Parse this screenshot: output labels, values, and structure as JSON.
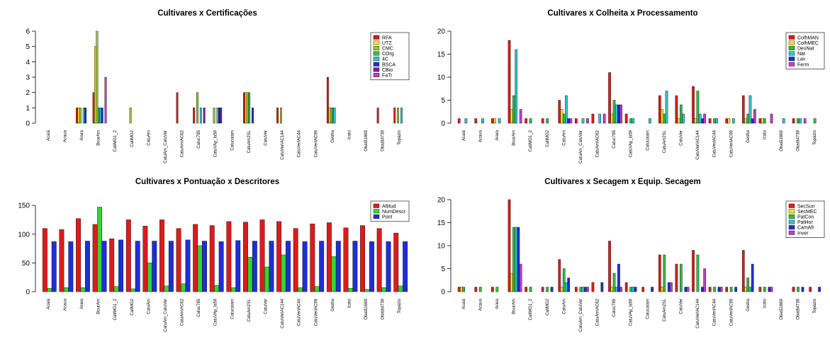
{
  "chart_data": [
    {
      "type": "bar",
      "title": "Cultivares x Certificações",
      "ylim": [
        0,
        6
      ],
      "yticks": [
        0,
        1,
        2,
        3,
        4,
        5,
        6
      ],
      "legend": "top-right",
      "categories": [
        "Acaiá",
        "Acaua",
        "Arara",
        "BourAm",
        "CatiMG1_2",
        "CatiMG2",
        "CatuAm",
        "CatuAm_CatuVer",
        "CatuAmIAC62",
        "Catuc785",
        "CatuVAp_la59",
        "Catucaiam",
        "CatuAm2SL",
        "CatuVer",
        "CatuVerIAC144",
        "CatuVerIAC44",
        "CatuVerIAC99",
        "Gesha",
        "Icatú",
        "Obatã1669",
        "Obatã4739",
        "Topázio"
      ],
      "series": [
        {
          "name": "RFA",
          "color": "#DF1A1A",
          "values": [
            0,
            0,
            1,
            2,
            0,
            0,
            0,
            0,
            2,
            1,
            0,
            0,
            2,
            0,
            1,
            0,
            0,
            3,
            0,
            0,
            1,
            1
          ]
        },
        {
          "name": "UTZ",
          "color": "#F2E21C",
          "values": [
            0,
            0,
            1,
            5,
            0,
            0,
            0,
            0,
            0,
            0,
            0,
            0,
            2,
            0,
            0,
            0,
            0,
            1,
            0,
            0,
            0,
            0
          ]
        },
        {
          "name": "CMC",
          "color": "#9BC43B",
          "values": [
            0,
            0,
            1,
            6,
            0,
            1,
            0,
            0,
            0,
            2,
            1,
            0,
            2,
            0,
            1,
            0,
            0,
            1,
            0,
            0,
            0,
            1
          ]
        },
        {
          "name": "COrg",
          "color": "#2FBF44",
          "values": [
            0,
            0,
            0,
            1,
            0,
            0,
            0,
            0,
            0,
            0,
            0,
            0,
            2,
            0,
            0,
            0,
            0,
            1,
            0,
            0,
            0,
            0
          ]
        },
        {
          "name": "4C",
          "color": "#33C3D1",
          "values": [
            0,
            0,
            1,
            1,
            0,
            0,
            0,
            0,
            0,
            1,
            1,
            0,
            0,
            0,
            0,
            0,
            0,
            1,
            0,
            0,
            0,
            1
          ]
        },
        {
          "name": "BSCA",
          "color": "#1F2ED6",
          "values": [
            0,
            0,
            1,
            1,
            0,
            0,
            0,
            0,
            0,
            0,
            1,
            0,
            1,
            0,
            0,
            0,
            0,
            0,
            0,
            0,
            0,
            0
          ]
        },
        {
          "name": "CBio",
          "color": "#7B1FA2",
          "values": [
            0,
            0,
            0,
            0,
            0,
            0,
            0,
            0,
            0,
            1,
            1,
            0,
            0,
            0,
            0,
            0,
            0,
            0,
            0,
            0,
            0,
            0
          ]
        },
        {
          "name": "FaTr",
          "color": "#C03FBF",
          "values": [
            0,
            0,
            0,
            3,
            0,
            0,
            0,
            0,
            0,
            0,
            0,
            0,
            0,
            0,
            0,
            0,
            0,
            0,
            0,
            0,
            0,
            0
          ]
        }
      ]
    },
    {
      "type": "bar",
      "title": "Cultivares x Colheita x Processamento",
      "ylim": [
        0,
        20
      ],
      "yticks": [
        0,
        5,
        10,
        15,
        20
      ],
      "legend": "top-right",
      "categories": [
        "Acaiá",
        "Acaua",
        "Arara",
        "BourAm",
        "CatiMG1_2",
        "CatiMG2",
        "CatuAm",
        "CatuAm_CatuVer",
        "CatuAmIAC62",
        "Catuc785",
        "CatuVAp_la59",
        "Catucaiam",
        "CatuAm2SL",
        "CatuVer",
        "CatuVerIAC144",
        "CatuVerIAC44",
        "CatuVerIAC99",
        "Gesha",
        "Icatú",
        "Obatã1669",
        "Obatã4739",
        "Topázio"
      ],
      "series": [
        {
          "name": "ColhMAN",
          "color": "#DF1A1A",
          "values": [
            1,
            1,
            1,
            18,
            1,
            1,
            5,
            1,
            2,
            11,
            2,
            0,
            6,
            6,
            8,
            1,
            1,
            6,
            1,
            0,
            1,
            0
          ]
        },
        {
          "name": "ColhMEC",
          "color": "#F2E21C",
          "values": [
            0,
            0,
            1,
            3,
            0,
            0,
            3,
            0,
            0,
            2,
            0,
            0,
            3,
            1,
            1,
            0,
            1,
            1,
            1,
            0,
            0,
            0
          ]
        },
        {
          "name": "DesNat",
          "color": "#2FBF44",
          "values": [
            0,
            0,
            0,
            6,
            1,
            1,
            2,
            0,
            0,
            5,
            1,
            0,
            2,
            4,
            7,
            1,
            0,
            2,
            1,
            0,
            1,
            1
          ]
        },
        {
          "name": "Nat",
          "color": "#33C3D1",
          "values": [
            1,
            1,
            1,
            16,
            0,
            0,
            6,
            1,
            2,
            4,
            1,
            1,
            7,
            2,
            2,
            1,
            1,
            6,
            0,
            1,
            1,
            0
          ]
        },
        {
          "name": "Lav",
          "color": "#1F2ED6",
          "values": [
            0,
            0,
            0,
            0,
            0,
            0,
            1,
            0,
            0,
            4,
            0,
            0,
            0,
            0,
            1,
            0,
            0,
            1,
            0,
            0,
            0,
            0
          ]
        },
        {
          "name": "Ferm",
          "color": "#C03FBF",
          "values": [
            0,
            0,
            0,
            3,
            0,
            0,
            1,
            1,
            2,
            4,
            0,
            0,
            0,
            0,
            2,
            0,
            0,
            3,
            2,
            0,
            1,
            0
          ]
        }
      ]
    },
    {
      "type": "bar",
      "title": "Cultivares x Pontuação x Descritores",
      "ylim": [
        0,
        160
      ],
      "yticks": [
        0,
        50,
        100,
        150
      ],
      "legend": "top-right",
      "categories": [
        "Acaiá",
        "Acaua",
        "Arara",
        "BourAm",
        "CatiMG1_2",
        "CatiMG2",
        "CatuAm",
        "CatuAm_CatuVer",
        "CatuAmIAC62",
        "Catuc785",
        "CatuVAp_la59",
        "Catucaiam",
        "CatuAm2SL",
        "CatuVer",
        "CatuVerIAC144",
        "CatuVerIAC44",
        "CatuVerIAC99",
        "Gesha",
        "Icatú",
        "Obatã1669",
        "Obatã4739",
        "Topázio"
      ],
      "series": [
        {
          "name": "Altitud",
          "color": "#DF1A1A",
          "values": [
            110,
            108,
            127,
            117,
            92,
            125,
            114,
            125,
            110,
            117,
            115,
            122,
            121,
            125,
            122,
            110,
            118,
            120,
            111,
            115,
            110,
            102
          ]
        },
        {
          "name": "NumDescr",
          "color": "#33D633",
          "values": [
            6,
            7,
            7,
            147,
            9,
            5,
            50,
            10,
            14,
            80,
            11,
            7,
            60,
            43,
            64,
            7,
            9,
            61,
            6,
            4,
            7,
            10
          ]
        },
        {
          "name": "Pont",
          "color": "#1F2ED6",
          "values": [
            87,
            87,
            88,
            88,
            90,
            88,
            88,
            88,
            90,
            88,
            87,
            89,
            88,
            88,
            88,
            87,
            88,
            88,
            88,
            87,
            87,
            87
          ]
        }
      ]
    },
    {
      "type": "bar",
      "title": "Cultivares x Secagem x Equip. Secagem",
      "ylim": [
        0,
        20
      ],
      "yticks": [
        0,
        5,
        10,
        15,
        20
      ],
      "legend": "top-right",
      "categories": [
        "Acaiá",
        "Acaua",
        "Arara",
        "BourAm",
        "CatiMG1_2",
        "CatiMG2",
        "CatuAm",
        "CatuAm_CatuVer",
        "CatuAmIAC62",
        "Catuc785",
        "CatuVAp_la59",
        "Catucaiam",
        "CatuAm2SL",
        "CatuVer",
        "CatuVerIAC144",
        "CatuVerIAC44",
        "CatuVerIAC99",
        "Gesha",
        "Icatú",
        "Obatã1669",
        "Obatã4739",
        "Topázio"
      ],
      "series": [
        {
          "name": "SecSun",
          "color": "#DF1A1A",
          "values": [
            1,
            1,
            1,
            20,
            1,
            1,
            7,
            1,
            2,
            11,
            2,
            1,
            8,
            6,
            9,
            1,
            1,
            9,
            1,
            0,
            1,
            1
          ]
        },
        {
          "name": "SecMEC",
          "color": "#F2E21C",
          "values": [
            1,
            0,
            0,
            4,
            0,
            0,
            1,
            0,
            0,
            1,
            0,
            0,
            1,
            0,
            0,
            0,
            0,
            1,
            0,
            0,
            0,
            0
          ]
        },
        {
          "name": "PatCon",
          "color": "#2FBF44",
          "values": [
            1,
            1,
            1,
            14,
            1,
            1,
            5,
            1,
            0,
            4,
            1,
            0,
            8,
            6,
            8,
            1,
            1,
            3,
            1,
            0,
            1,
            0
          ]
        },
        {
          "name": "PatHor",
          "color": "#33C3D1",
          "values": [
            0,
            0,
            0,
            14,
            0,
            0,
            2,
            1,
            0,
            1,
            1,
            0,
            0,
            0,
            0,
            0,
            0,
            1,
            0,
            0,
            0,
            0
          ]
        },
        {
          "name": "CamAfr",
          "color": "#1F2ED6",
          "values": [
            0,
            0,
            0,
            14,
            0,
            1,
            3,
            1,
            2,
            6,
            1,
            1,
            2,
            1,
            1,
            1,
            1,
            6,
            1,
            0,
            1,
            1
          ]
        },
        {
          "name": "Inver",
          "color": "#C03FBF",
          "values": [
            0,
            0,
            0,
            6,
            0,
            0,
            0,
            1,
            0,
            1,
            0,
            0,
            2,
            1,
            5,
            1,
            0,
            0,
            1,
            0,
            0,
            0
          ]
        }
      ]
    }
  ]
}
